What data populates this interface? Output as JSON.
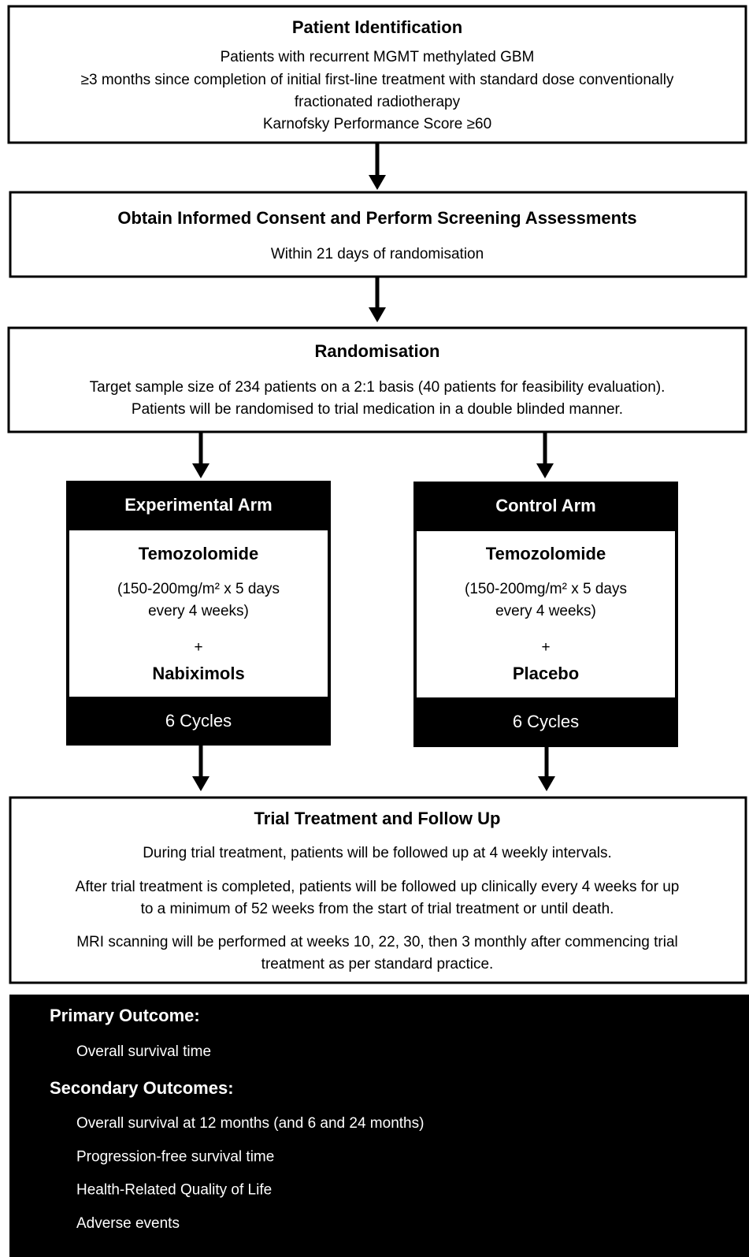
{
  "boxes": [
    {
      "title": "Patient Identification",
      "lines": [
        "Patients with recurrent MGMT methylated GBM",
        "≥3 months since completion of initial first-line treatment with standard dose conventionally",
        "fractionated radiotherapy",
        "Karnofsky Performance Score ≥60"
      ]
    },
    {
      "title": "Obtain Informed Consent and Perform Screening Assessments",
      "lines": [
        "Within 21 days of randomisation"
      ]
    },
    {
      "title": "Randomisation",
      "lines": [
        "Target sample size of 234 patients on a 2:1 basis (40 patients for feasibility evaluation).",
        "Patients will be randomised to trial medication in a double blinded manner."
      ]
    }
  ],
  "arms": [
    {
      "header": "Experimental Arm",
      "drug": "Temozolomide",
      "dose": [
        "(150-200mg/m² x 5 days",
        "every 4 weeks)"
      ],
      "plus": "+",
      "addition": "Nabiximols",
      "cycles": "6 Cycles"
    },
    {
      "header": "Control Arm",
      "drug": "Temozolomide",
      "dose": [
        "(150-200mg/m² x 5 days",
        "every 4 weeks)"
      ],
      "plus": "+",
      "addition": "Placebo",
      "cycles": "6 Cycles"
    }
  ],
  "followup": {
    "title": "Trial Treatment and Follow Up",
    "lines": [
      "During trial treatment, patients will be followed up at 4 weekly intervals.",
      "After trial treatment is completed, patients will be followed up clinically every 4 weeks for up",
      "to a minimum of 52 weeks from the start of trial treatment or until death.",
      "MRI scanning will be performed at weeks 10, 22, 30, then 3 monthly after commencing trial",
      "treatment as per standard practice."
    ]
  },
  "outcomes": {
    "primary_heading": "Primary Outcome:",
    "primary": [
      "Overall survival time"
    ],
    "secondary_heading": "Secondary Outcomes:",
    "secondary": [
      "Overall survival at 12 months (and 6 and 24 months)",
      "Progression-free survival time",
      "Health-Related Quality of Life",
      "Adverse events"
    ]
  }
}
